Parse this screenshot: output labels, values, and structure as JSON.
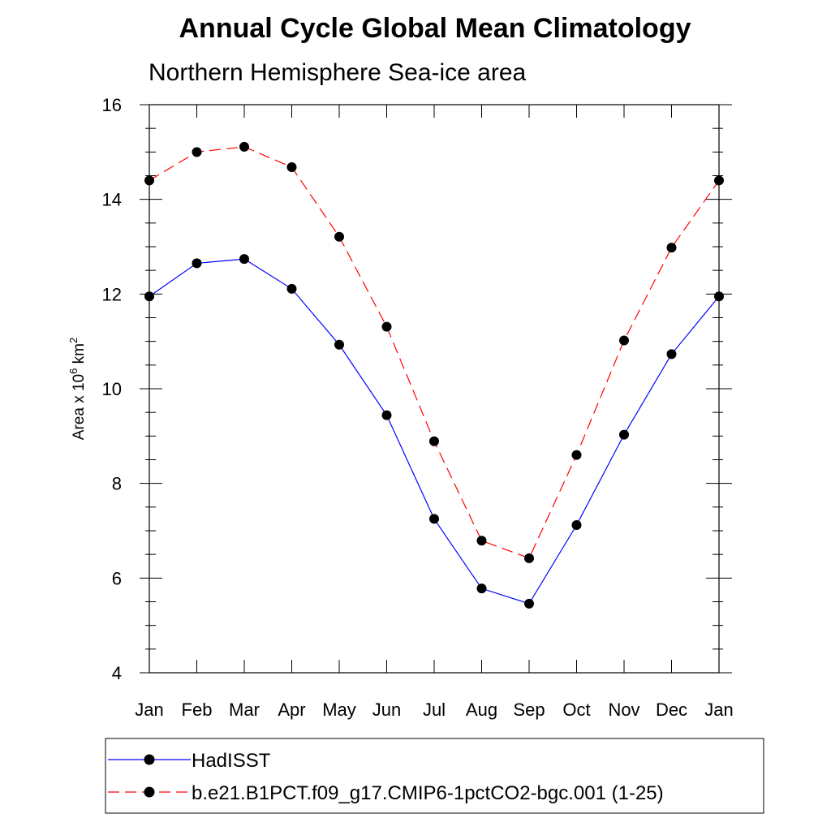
{
  "chart_data": {
    "type": "line",
    "title": "Annual Cycle Global Mean Climatology",
    "subtitle": "Northern Hemisphere Sea-ice area",
    "ylabel": {
      "prefix": "Area x 10",
      "exp1": "6",
      "mid": " km",
      "exp2": "2"
    },
    "xlabel": "",
    "categories": [
      "Jan",
      "Feb",
      "Mar",
      "Apr",
      "May",
      "Jun",
      "Jul",
      "Aug",
      "Sep",
      "Oct",
      "Nov",
      "Dec",
      "Jan"
    ],
    "ylim": [
      4,
      16
    ],
    "yticks": [
      4,
      6,
      8,
      10,
      12,
      14,
      16
    ],
    "series": [
      {
        "name": "HadISST",
        "color": "#0000ff",
        "dash": "solid",
        "marker": "filled-circle",
        "values": [
          11.95,
          12.65,
          12.74,
          12.11,
          10.93,
          9.44,
          7.25,
          5.78,
          5.46,
          7.12,
          9.03,
          10.73,
          11.95
        ]
      },
      {
        "name": "b.e21.B1PCT.f09_g17.CMIP6-1pctCO2-bgc.001 (1-25)",
        "color": "#ff0000",
        "dash": "dashed",
        "marker": "filled-circle",
        "values": [
          14.4,
          15.0,
          15.11,
          14.68,
          13.21,
          11.31,
          8.89,
          6.79,
          6.42,
          8.6,
          11.02,
          12.98,
          14.4
        ]
      }
    ],
    "legend_position": "bottom"
  }
}
